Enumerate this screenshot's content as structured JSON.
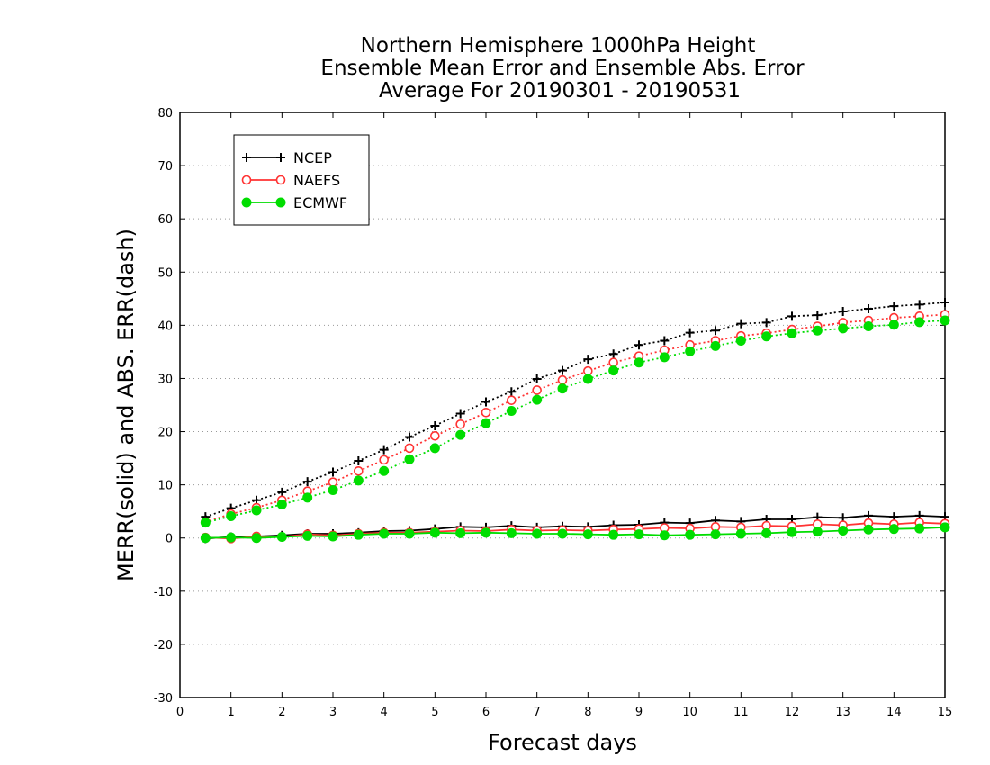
{
  "chart_data": {
    "type": "line",
    "title": [
      "Northern Hemisphere 1000hPa Height",
      "Ensemble Mean Error and Ensemble Abs. Error",
      "Average For 20190301 - 20190531"
    ],
    "xlabel": "Forecast days",
    "ylabel": "MERR(solid) and ABS. ERR(dash)",
    "xlim": [
      0,
      15
    ],
    "ylim": [
      -30,
      80
    ],
    "xticks": [
      0,
      1,
      2,
      3,
      4,
      5,
      6,
      7,
      8,
      9,
      10,
      11,
      12,
      13,
      14,
      15
    ],
    "yticks": [
      -30,
      -20,
      -10,
      0,
      10,
      20,
      30,
      40,
      50,
      60,
      70,
      80
    ],
    "grid": "horizontal dotted",
    "legend_position": "top-left",
    "x": [
      0.5,
      1,
      1.5,
      2,
      2.5,
      3,
      3.5,
      4,
      4.5,
      5,
      5.5,
      6,
      6.5,
      7,
      7.5,
      8,
      8.5,
      9,
      9.5,
      10,
      10.5,
      11,
      11.5,
      12,
      12.5,
      13,
      13.5,
      14,
      14.5,
      15
    ],
    "series": [
      {
        "name": "NCEP",
        "color": "#000000",
        "marker": "plus",
        "abs_err": [
          4.0,
          5.6,
          7.1,
          8.6,
          10.6,
          12.4,
          14.5,
          16.6,
          19.0,
          21.1,
          23.4,
          25.6,
          27.5,
          29.9,
          31.5,
          33.6,
          34.6,
          36.3,
          37.1,
          38.6,
          39.0,
          40.3,
          40.5,
          41.7,
          41.9,
          42.6,
          43.1,
          43.6,
          43.9,
          44.3
        ],
        "mean_err": [
          -0.1,
          0.2,
          0.3,
          0.5,
          0.8,
          0.8,
          1.0,
          1.3,
          1.4,
          1.7,
          2.1,
          2.0,
          2.3,
          2.0,
          2.2,
          2.1,
          2.4,
          2.5,
          2.9,
          2.8,
          3.3,
          3.1,
          3.5,
          3.5,
          3.9,
          3.8,
          4.2,
          4.0,
          4.2,
          4.0
        ]
      },
      {
        "name": "NAEFS",
        "color": "#ff3333",
        "marker": "open-circle",
        "abs_err": [
          3.0,
          4.5,
          5.7,
          7.1,
          8.8,
          10.5,
          12.6,
          14.7,
          16.9,
          19.2,
          21.4,
          23.6,
          25.9,
          27.8,
          29.7,
          31.4,
          33.0,
          34.2,
          35.3,
          36.3,
          37.1,
          38.0,
          38.5,
          39.2,
          39.8,
          40.5,
          40.9,
          41.4,
          41.7,
          42.0
        ],
        "mean_err": [
          0.1,
          -0.1,
          0.3,
          0.2,
          0.7,
          0.5,
          0.8,
          1.0,
          1.0,
          1.2,
          1.4,
          1.3,
          1.6,
          1.4,
          1.5,
          1.4,
          1.6,
          1.7,
          1.9,
          1.8,
          2.1,
          2.0,
          2.3,
          2.2,
          2.6,
          2.4,
          2.8,
          2.6,
          2.9,
          2.7
        ]
      },
      {
        "name": "ECMWF",
        "color": "#00dd00",
        "marker": "filled-circle",
        "abs_err": [
          2.9,
          4.1,
          5.2,
          6.3,
          7.6,
          9.0,
          10.8,
          12.6,
          14.8,
          16.9,
          19.4,
          21.6,
          23.9,
          26.0,
          28.1,
          29.9,
          31.5,
          33.0,
          34.0,
          35.1,
          36.1,
          37.1,
          37.9,
          38.5,
          39.0,
          39.4,
          39.8,
          40.1,
          40.6,
          40.9
        ],
        "mean_err": [
          0.0,
          0.1,
          0.0,
          0.2,
          0.4,
          0.3,
          0.6,
          0.8,
          0.8,
          1.0,
          0.9,
          1.0,
          0.9,
          0.8,
          0.8,
          0.7,
          0.6,
          0.7,
          0.5,
          0.6,
          0.7,
          0.8,
          0.9,
          1.1,
          1.2,
          1.4,
          1.6,
          1.7,
          1.8,
          2.0
        ]
      }
    ]
  }
}
